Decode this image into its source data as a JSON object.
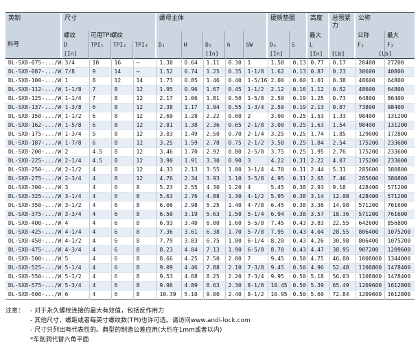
{
  "colors": {
    "header-bg": "#cbd6e1",
    "row-alt": "#e7edf4",
    "dark-line": "#3c3c3c",
    "thin-line": "#97a5b2",
    "col-line": "#bac7d3",
    "row-line": "#dde4ea"
  },
  "header": {
    "group_imperial": "英制",
    "group_size": "尺寸",
    "group_nut_body": "螺母主体",
    "group_washer": "硬质垫圈",
    "group_height": "高度",
    "group_preload": "总预紧力",
    "group_nominal": "公称",
    "part_no": "料号",
    "thread": "螺纹",
    "d": "D",
    "tpi_group": "可用TPI螺纹",
    "tpi1": "TPI₁",
    "tpi2": "TPI₂",
    "tpi3": "TPI₃",
    "d1": "D₁",
    "h_cap": "H",
    "d2": "D₂",
    "h": "h",
    "sw": "SW",
    "d3": "D₃",
    "s": "S",
    "max": "最大",
    "l": "L",
    "nominal_sub": "公称",
    "max_sub": "最大",
    "f1": "F₁",
    "f2": "F₂",
    "unit_in": "[In]",
    "unit_lb": "[Lb]"
  },
  "table": {
    "col_names": [
      "part-no",
      "thread-d",
      "tpi1",
      "tpi2",
      "tpi3",
      "d1",
      "h-height",
      "d2",
      "h",
      "sw",
      "d3",
      "s",
      "l-max",
      "preload",
      "f1",
      "f2"
    ],
    "rows": [
      [
        "DL-SX8-075-.../W",
        "3/4",
        "10",
        "16",
        "–",
        "1.30",
        "0.64",
        "1.11",
        "0.30",
        "1",
        "1.50",
        "0.13",
        "0.77",
        "0.17",
        "20400",
        "27200"
      ],
      [
        "DL-SX8-087-.../W",
        "7/8",
        "9",
        "14",
        "–",
        "1.52",
        "0.74",
        "1.25",
        "0.35",
        "1-1/8",
        "1.62",
        "0.13",
        "0.87",
        "0.23",
        "30600",
        "40800"
      ],
      [
        "DL-SX8-100-.../W",
        "1",
        "8",
        "12",
        "14",
        "1.73",
        "0.85",
        "1.46",
        "0.40",
        "1-5/16",
        "2.00",
        "0.60",
        "1.01",
        "0.38",
        "48600",
        "64800"
      ],
      [
        "DL-SX8-112-.../W",
        "1-1/8",
        "7",
        "8",
        "12",
        "1.95",
        "0.96",
        "1.67",
        "0.45",
        "1-1/2",
        "2.12",
        "0.16",
        "1.12",
        "0.52",
        "48600",
        "64800"
      ],
      [
        "DL-SX8-125-.../W",
        "1-1/4",
        "7",
        "8",
        "12",
        "2.17",
        "1.06",
        "1.81",
        "0.50",
        "1-5/8",
        "2.50",
        "0.19",
        "1.25",
        "0.73",
        "64800",
        "86400"
      ],
      [
        "DL-SX8-137-.../W",
        "1-3/8",
        "6",
        "8",
        "12",
        "2.38",
        "1.17",
        "1.94",
        "0.55",
        "1-3/4",
        "2.50",
        "0.19",
        "2.13",
        "0.87",
        "73800",
        "98400"
      ],
      [
        "DL-SX8-150-.../W",
        "1-1/2",
        "6",
        "8",
        "12",
        "2.60",
        "1.28",
        "2.22",
        "0.60",
        "2",
        "3.00",
        "0.25",
        "1.53",
        "1.33",
        "98400",
        "131200"
      ],
      [
        "DL-SX8-162-.../W",
        "1-5/8",
        "6",
        "8",
        "12",
        "2.81",
        "1.38",
        "2.36",
        "0.65",
        "2-1/8",
        "3.00",
        "0.25",
        "1.63",
        "1.54",
        "98400",
        "131200"
      ],
      [
        "DL-SX8-175-.../W",
        "1-3/4",
        "5",
        "8",
        "12",
        "3.03",
        "1.49",
        "2.50",
        "0.70",
        "2-1/4",
        "3.25",
        "0.25",
        "1.74",
        "1.85",
        "129600",
        "172800"
      ],
      [
        "DL-SX8-187-.../W",
        "1-7/8",
        "6",
        "8",
        "12",
        "3.25",
        "1.59",
        "2.78",
        "0.75",
        "2-1/2",
        "3.50",
        "0.25",
        "1.84",
        "2.54",
        "175200",
        "233600"
      ],
      [
        "DL-SX8-200-.../W",
        "2",
        "4.5",
        "8",
        "12",
        "3.46",
        "1.70",
        "2.92",
        "0.80",
        "2-5/8",
        "3.75",
        "0.25",
        "1.95",
        "2.76",
        "175200",
        "233600"
      ],
      [
        "DL-SX8-225-.../W",
        "2-1/4",
        "4.5",
        "8",
        "12",
        "3.90",
        "1.91",
        "3.30",
        "0.90",
        "3",
        "4.22",
        "0.31",
        "2.22",
        "4.07",
        "175200",
        "233600"
      ],
      [
        "DL-SX8-250-.../W",
        "2-1/2",
        "4",
        "8",
        "12",
        "4.33",
        "2.13",
        "3.55",
        "1.00",
        "3-1/4",
        "4.70",
        "0.31",
        "2.44",
        "5.31",
        "285600",
        "380800"
      ],
      [
        "DL-SX8-275-.../W",
        "2-3/4",
        "4",
        "8",
        "12",
        "4.76",
        "2.34",
        "3.93",
        "1.10",
        "3-5/8",
        "4.95",
        "0.31",
        "2.65",
        "7.46",
        "285600",
        "380800"
      ],
      [
        "DL-SX8-300-.../W",
        "3",
        "4",
        "6",
        "8",
        "5.23",
        "2.55",
        "4.30",
        "1.20",
        "4",
        "5.45",
        "0.38",
        "2.93",
        "9.18",
        "428400",
        "571200"
      ],
      [
        "DL-SX8-325-.../W",
        "3-1/4",
        "4",
        "6",
        "8",
        "5.63",
        "2.76",
        "4.88",
        "1.30",
        "4-1/2",
        "5.95",
        "0.38",
        "3.14",
        "12.08",
        "428400",
        "571200"
      ],
      [
        "DL-SX8-350-.../W",
        "3-1/2",
        "4",
        "6",
        "8",
        "6.06",
        "2.98",
        "5.25",
        "1.40",
        "4-7/8",
        "6.45",
        "0.38",
        "3.36",
        "14.98",
        "571200",
        "761600"
      ],
      [
        "DL-SX8-375-.../W",
        "3-3/4",
        "4",
        "6",
        "8",
        "6.50",
        "3.19",
        "5.63",
        "1.50",
        "5-1/4",
        "6.94",
        "0.38",
        "3.57",
        "18.36",
        "571200",
        "761600"
      ],
      [
        "DL-SX8-400-.../W",
        "4",
        "4",
        "6",
        "8",
        "6.93",
        "3.40",
        "6.00",
        "1.60",
        "5-5/8",
        "7.45",
        "0.43",
        "3.83",
        "22.55",
        "642600",
        "856800"
      ],
      [
        "DL-SX8-425-.../W",
        "4-1/4",
        "4",
        "6",
        "8",
        "7.36",
        "3.61",
        "6.38",
        "1.70",
        "5-7/8",
        "7.95",
        "0.43",
        "4.04",
        "28.55",
        "806400",
        "1075200"
      ],
      [
        "DL-SX8-450-.../W",
        "4-1/2",
        "4",
        "6",
        "8",
        "7.79",
        "3.83",
        "6.75",
        "1.80",
        "6-1/4",
        "8.20",
        "0.43",
        "4.26",
        "30.98",
        "806400",
        "1075200"
      ],
      [
        "DL-SX8-475-.../W",
        "4-3/4",
        "4",
        "6",
        "8",
        "8.23",
        "4.04",
        "7.13",
        "1.90",
        "6-5/8",
        "8.70",
        "0.43",
        "4.47",
        "38.95",
        "907200",
        "1209600"
      ],
      [
        "DL-SX8-500-.../W",
        "5",
        "4",
        "6",
        "8",
        "8.66",
        "4.25",
        "7.50",
        "2.00",
        "7",
        "9.45",
        "0.50",
        "4.75",
        "46.80",
        "1008000",
        "1344000"
      ],
      [
        "DL-SX8-525-.../W",
        "5-1/4",
        "4",
        "6",
        "8",
        "9.09",
        "4.46",
        "7.88",
        "2.10",
        "7-3/8",
        "9.45",
        "0.50",
        "4.96",
        "52.48",
        "1108800",
        "1478400"
      ],
      [
        "DL-SX8-550-.../W",
        "5-1/2",
        "4",
        "6",
        "8",
        "9.53",
        "4.68",
        "8.25",
        "2.20",
        "7-3/4",
        "9.95",
        "0.50",
        "5.18",
        "56.03",
        "1108800",
        "1478400"
      ],
      [
        "DL-SX8-575-.../W",
        "5-3/4",
        "4",
        "6",
        "8",
        "9.96",
        "4.89",
        "8.63",
        "2.30",
        "8-1/8",
        "10.45",
        "0.50",
        "5.39",
        "65.49",
        "1209600",
        "1612800"
      ],
      [
        "DL-SX8-600-.../W",
        "6",
        "4",
        "6",
        "8",
        "10.39",
        "5.10",
        "9.00",
        "2.40",
        "8-1/2",
        "10.95",
        "0.50",
        "5.60",
        "72.84",
        "1209600",
        "1612800"
      ]
    ]
  },
  "notes": {
    "label": "注意：",
    "items": [
      "- 对于永久螺栓连接的最大有效值，包括反作用力",
      "- 其他尺寸，螺距或者每英寸螺纹数(TPI)也许可选。请访问www.andi-lock.com",
      "- 尺寸只列出有代表性的。典型的制造公差应用(大约在1mm或者以内)",
      "*车削洞代替六角平面"
    ]
  }
}
